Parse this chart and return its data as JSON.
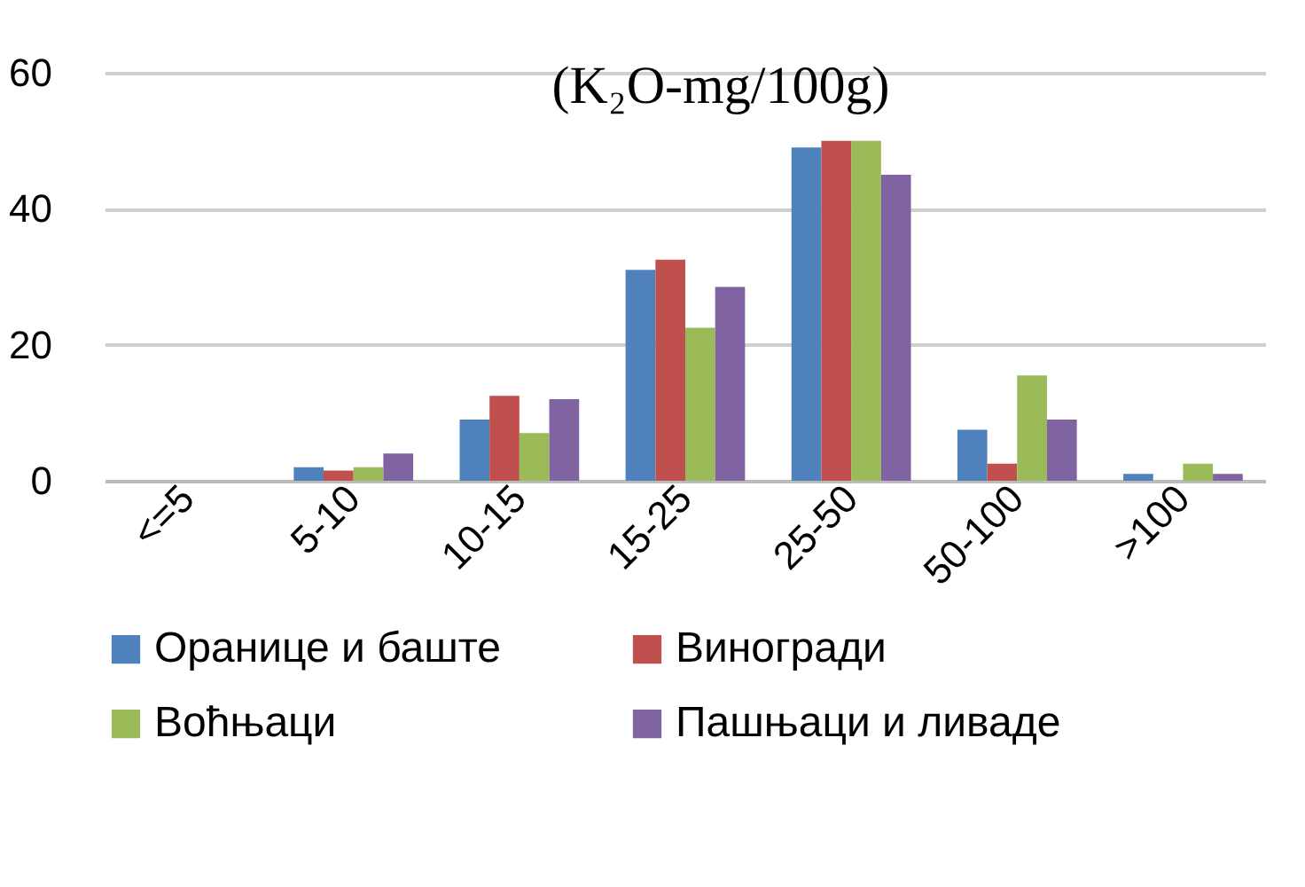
{
  "chart_data": {
    "type": "bar",
    "title": "(K₂O-mg/100g)",
    "categories": [
      "<=5",
      "5-10",
      "10-15",
      "15-25",
      "25-50",
      "50-100",
      ">100"
    ],
    "series": [
      {
        "name": "Оранице и баште",
        "color": "#4f81bd",
        "values": [
          0,
          2,
          9,
          31,
          49,
          7.5,
          1
        ]
      },
      {
        "name": "Виногради",
        "color": "#c0504d",
        "values": [
          0,
          1.5,
          12.5,
          32.5,
          50,
          2.5,
          0
        ]
      },
      {
        "name": "Воћњаци",
        "color": "#9bbb59",
        "values": [
          0,
          2,
          7,
          22.5,
          50,
          15.5,
          2.5
        ]
      },
      {
        "name": "Пашњаци и ливаде",
        "color": "#8064a2",
        "values": [
          0,
          4,
          12,
          28.5,
          45,
          9,
          1
        ]
      }
    ],
    "ylim": [
      0,
      60
    ],
    "yticks": [
      0,
      20,
      40,
      60
    ],
    "grid": "y",
    "legend": "bottom"
  }
}
